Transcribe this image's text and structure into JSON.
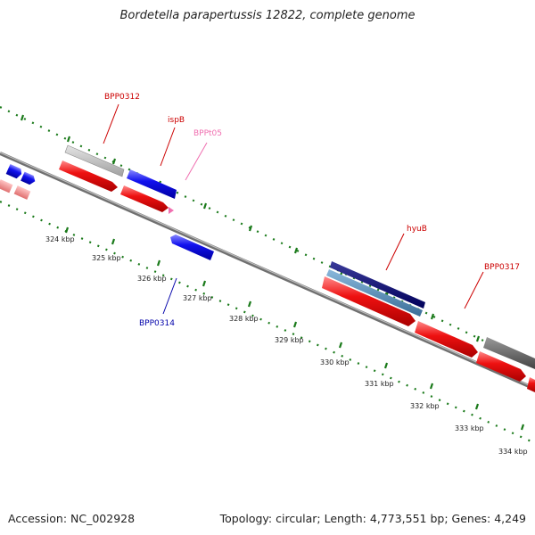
{
  "title": "Bordetella parapertussis 12822, complete genome",
  "footer": {
    "accession": "Accession: NC_002928",
    "topology": "Topology: circular; Length: 4,773,551 bp; Genes: 4,249"
  },
  "ticks": [
    "324 kbp",
    "325 kbp",
    "326 kbp",
    "327 kbp",
    "328 kbp",
    "329 kbp",
    "330 kbp",
    "331 kbp",
    "332 kbp",
    "333 kbp",
    "334 kbp"
  ],
  "gene_labels": [
    {
      "text": "BPP0312",
      "color": "#cc0000"
    },
    {
      "text": "ispB",
      "color": "#cc0000"
    },
    {
      "text": "BPPt05",
      "color": "#f06fb0"
    },
    {
      "text": "BPP0314",
      "color": "#0000aa"
    },
    {
      "text": "hyuB",
      "color": "#cc0000"
    },
    {
      "text": "BPP0317",
      "color": "#cc0000"
    }
  ],
  "colors": {
    "cds_forward": "#ee1111",
    "cds_reverse": "#1111ee",
    "trna": "#f06fb0",
    "tick_green": "#1a7a1a",
    "backbone": "#808080"
  }
}
